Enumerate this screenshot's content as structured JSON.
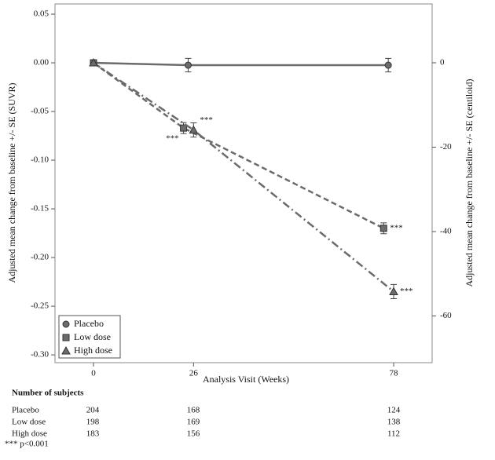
{
  "chart_data": {
    "type": "line",
    "ylabel": "Adjusted mean change from baseline +/- SE (SUVR)",
    "y2label": "Adjusted mean change from baseline +/- SE (centiloid)",
    "xlabel": "Analysis Visit (Weeks)",
    "x": [
      0,
      26,
      78
    ],
    "xlim": [
      -10,
      88
    ],
    "xticks": [
      0,
      26,
      78
    ],
    "ylim": [
      -0.308,
      0.0605
    ],
    "yticks": [
      0.05,
      {
        "value": 0,
        "label": "0.00"
      },
      {
        "value": -0.05,
        "label": "-0.05"
      },
      {
        "value": -0.1,
        "label": "-0.10"
      },
      -0.15,
      {
        "value": -0.2,
        "label": "-0.20"
      },
      -0.25,
      {
        "value": -0.3,
        "label": "-0.30"
      }
    ],
    "y2lim": [
      -71.07,
      13.95
    ],
    "y2ticks": [
      0,
      -20,
      -40,
      -60
    ],
    "legend": "lower left",
    "series": [
      {
        "name": "Placebo",
        "color": "#6b6b6b",
        "marker": "circle",
        "dash": "solid",
        "values": [
          0,
          -0.0024,
          -0.0024
        ],
        "errors": [
          0,
          0.007,
          0.007
        ]
      },
      {
        "name": "Low dose",
        "color": "#6b6b6b",
        "marker": "square",
        "dash": "dashed",
        "values": [
          0,
          -0.067,
          -0.17
        ],
        "errors": [
          0,
          0.0056,
          0.0056
        ],
        "point_labels": [
          null,
          "***",
          "***"
        ]
      },
      {
        "name": "High dose",
        "color": "#6b6b6b",
        "marker": "triangle",
        "dash": "dashdot",
        "values": [
          0,
          -0.069,
          -0.235
        ],
        "errors": [
          0,
          0.0073,
          0.0073
        ],
        "point_labels": [
          null,
          "***",
          "***"
        ]
      }
    ]
  },
  "table": {
    "title": "Number of subjects",
    "rows": [
      [
        "Placebo",
        204,
        168,
        124
      ],
      [
        "Low dose",
        198,
        169,
        138
      ],
      [
        "High dose",
        183,
        156,
        112
      ]
    ]
  },
  "footnote": "*** p<0.001"
}
